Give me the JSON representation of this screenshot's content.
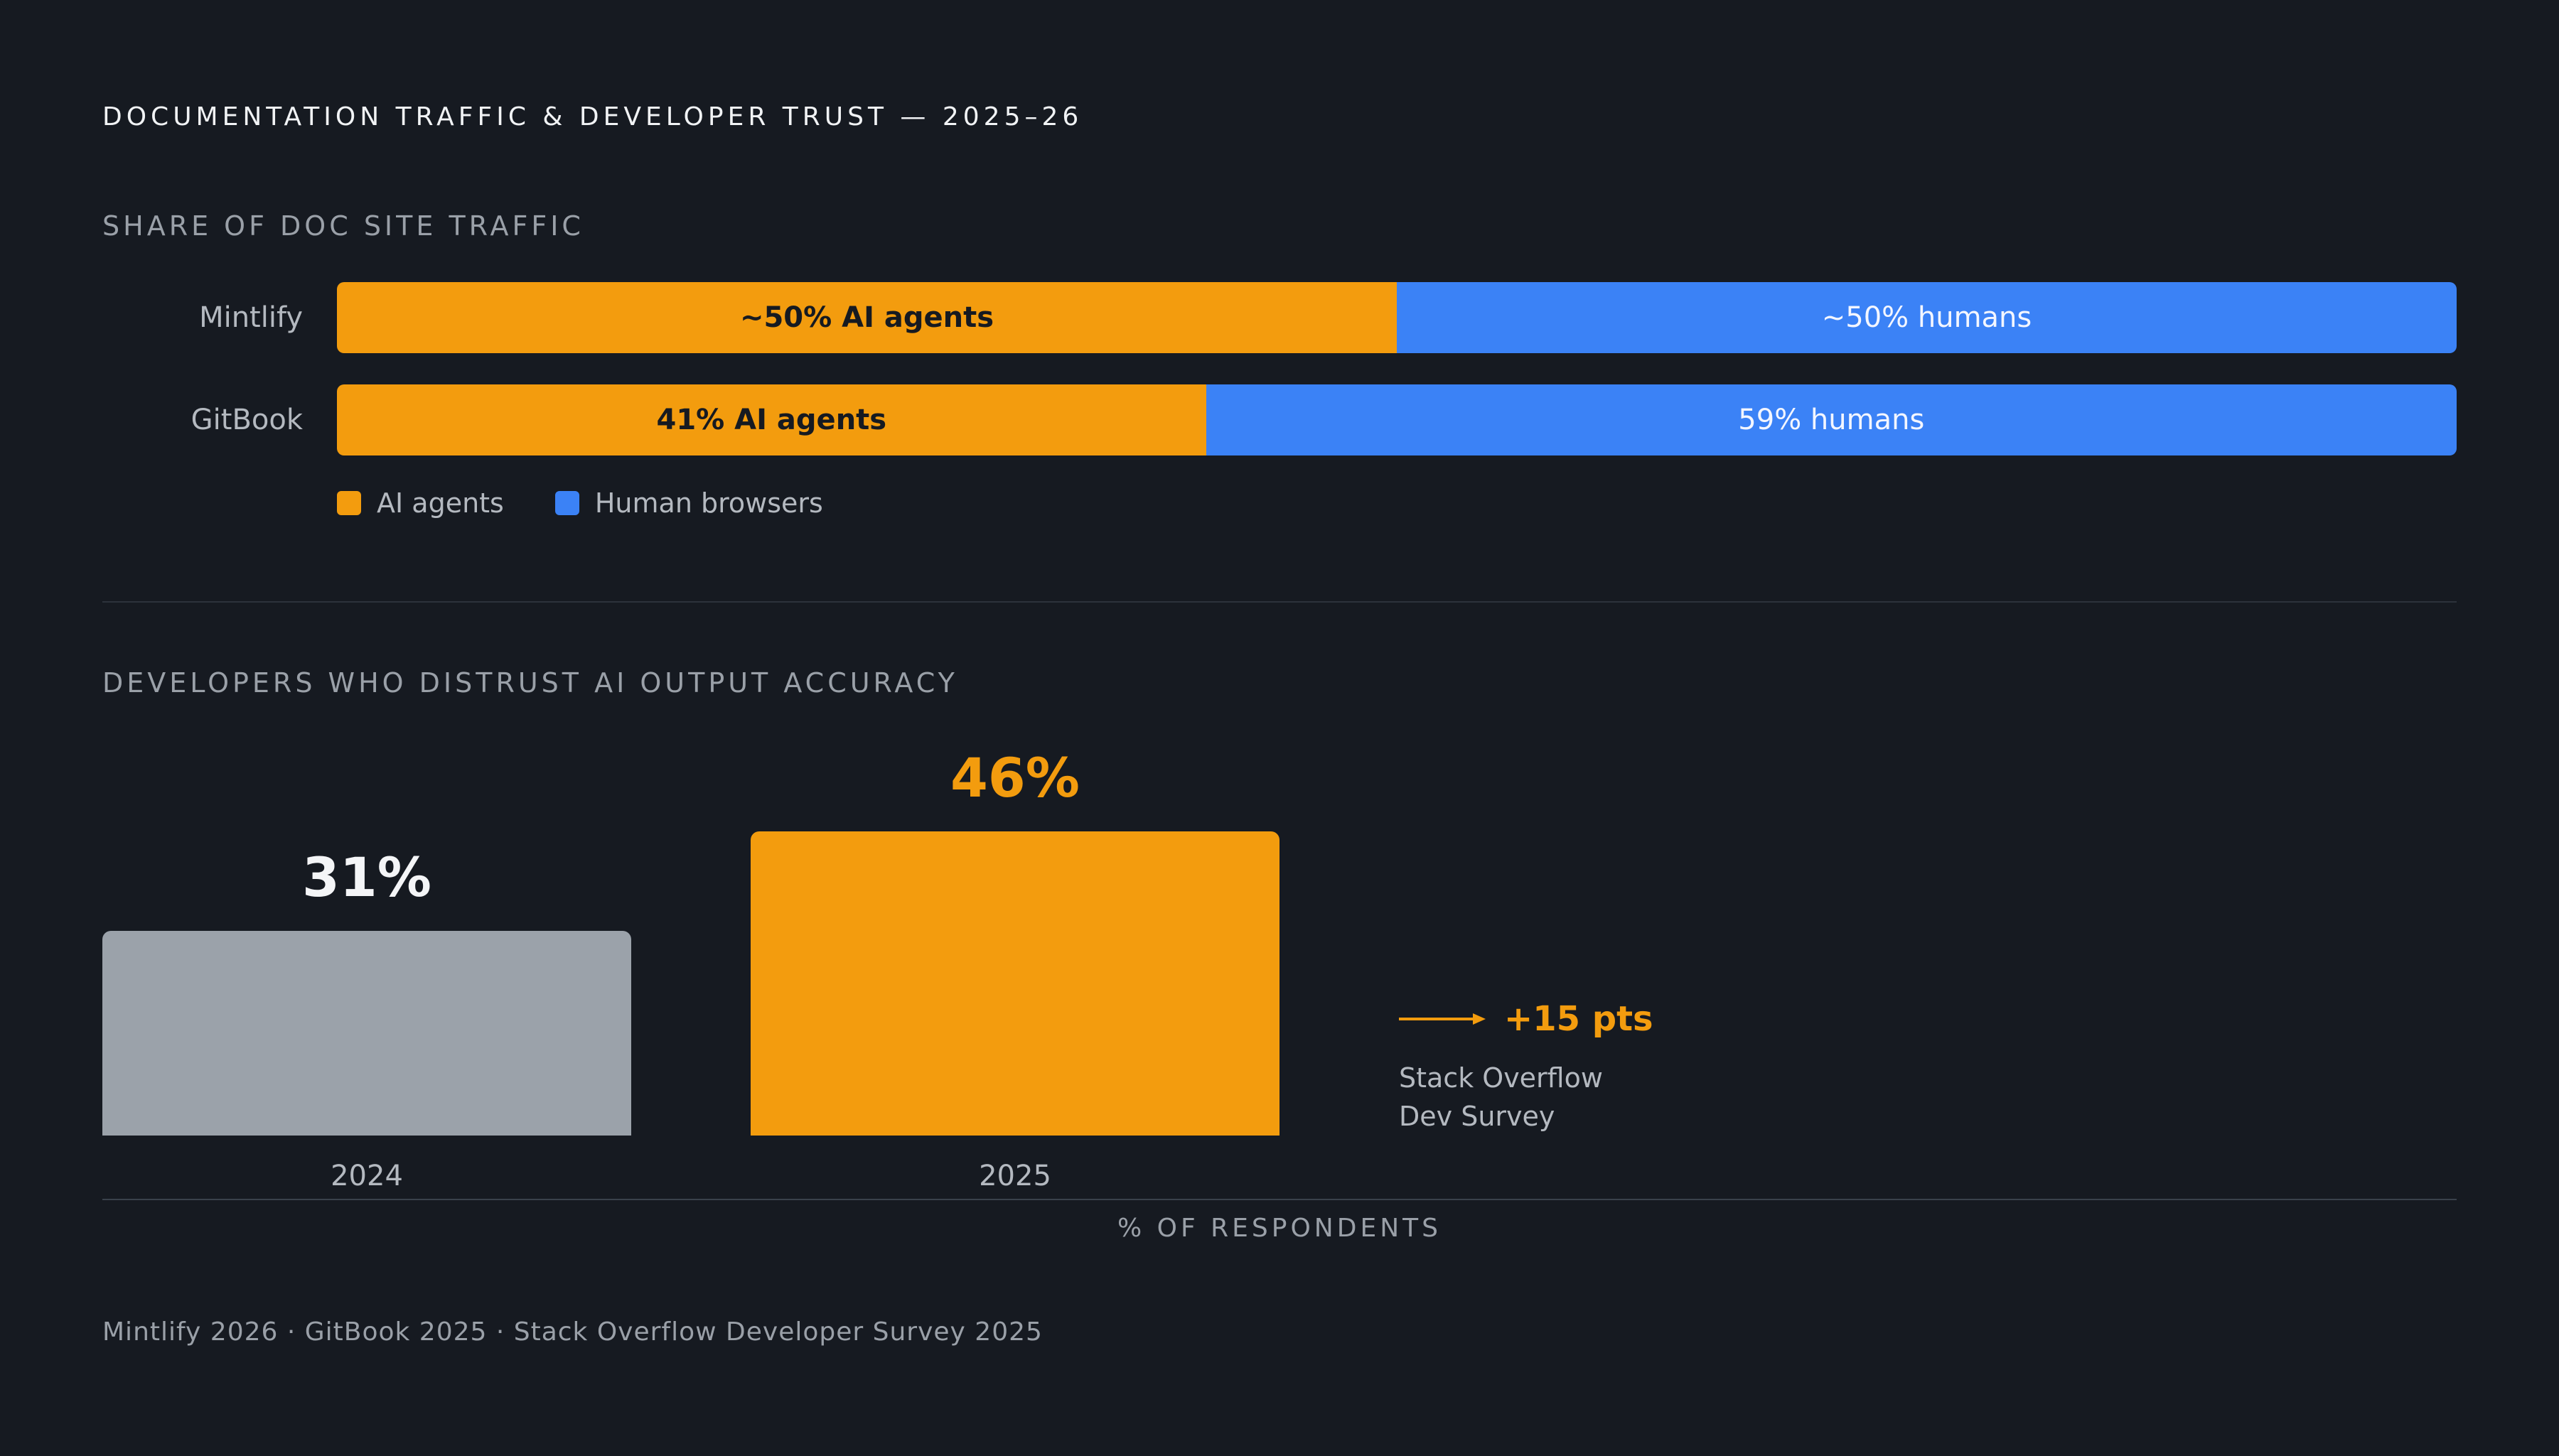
{
  "page": {
    "title": "DOCUMENTATION TRAFFIC & DEVELOPER TRUST — 2025–26",
    "source": "Mintlify 2026 · GitBook 2025 · Stack Overflow Developer Survey 2025"
  },
  "colors": {
    "ai": "#f39c0e",
    "human": "#3b82f6",
    "prior": "#9ba2aa",
    "background": "#161a21"
  },
  "chart_data": [
    {
      "type": "bar",
      "orientation": "horizontal",
      "stacked": true,
      "title": "SHARE OF DOC SITE TRAFFIC",
      "categories": [
        "Mintlify",
        "GitBook"
      ],
      "series": [
        {
          "name": "AI agents",
          "values": [
            50,
            41
          ],
          "labels": [
            "~50% AI agents",
            "41% AI agents"
          ]
        },
        {
          "name": "Human browsers",
          "values": [
            50,
            59
          ],
          "labels": [
            "~50% humans",
            "59% humans"
          ]
        }
      ],
      "xlim": [
        0,
        100
      ],
      "legend": "bottom-left"
    },
    {
      "type": "bar",
      "title": "DEVELOPERS WHO DISTRUST AI OUTPUT ACCURACY",
      "categories": [
        "2024",
        "2025"
      ],
      "values": [
        31,
        46
      ],
      "value_labels": [
        "31%",
        "46%"
      ],
      "xlabel": "% OF RESPONDENTS",
      "ylim": [
        0,
        46
      ],
      "annotation": {
        "text": "+15 pts",
        "note_line1": "Stack Overflow",
        "note_line2": "Dev Survey"
      }
    }
  ]
}
